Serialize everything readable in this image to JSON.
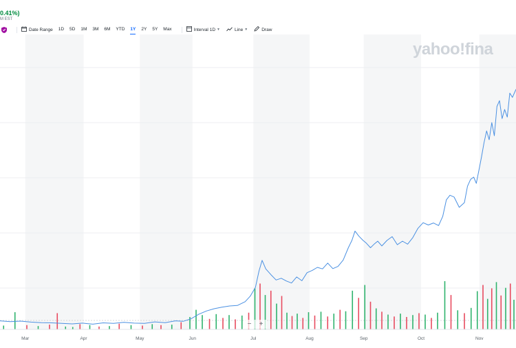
{
  "quote": {
    "change_pct": "0.41%)",
    "time_suffix": "M EST"
  },
  "toolbar": {
    "shield_icon": "shield-icon",
    "date_range": "Date Range",
    "ranges": [
      {
        "label": "1D",
        "active": false
      },
      {
        "label": "5D",
        "active": false
      },
      {
        "label": "1M",
        "active": false
      },
      {
        "label": "3M",
        "active": false
      },
      {
        "label": "6M",
        "active": false
      },
      {
        "label": "YTD",
        "active": false
      },
      {
        "label": "1Y",
        "active": true
      },
      {
        "label": "2Y",
        "active": false
      },
      {
        "label": "5Y",
        "active": false
      },
      {
        "label": "Max",
        "active": false
      }
    ],
    "interval_label": "Interval",
    "interval_value": "1D",
    "chart_type_label": "Line",
    "draw_label": "Draw"
  },
  "watermark": "yahoo!fina",
  "zoom": {
    "minus": "−",
    "plus": "+"
  },
  "chart_data": {
    "type": "line",
    "x_labels": [
      "Mar",
      "Apr",
      "May",
      "Jun",
      "Jul",
      "Aug",
      "Sep",
      "Oct",
      "Nov"
    ],
    "x_domain": [
      0,
      100
    ],
    "x_label_positions": [
      4.9,
      16.2,
      27.1,
      37.3,
      49.1,
      60.0,
      70.5,
      81.6,
      92.9
    ],
    "shaded_bands": [
      [
        4.9,
        16.2
      ],
      [
        27.1,
        37.3
      ],
      [
        49.1,
        60.0
      ],
      [
        70.5,
        81.6
      ],
      [
        92.9,
        100
      ]
    ],
    "y_range": [
      0,
      100
    ],
    "grid": {
      "horizontal": true,
      "vertical": false
    },
    "colors": {
      "line": "#4a90e2",
      "volume_up": "#2fb36d",
      "volume_down": "#e84a5f",
      "band": "#f5f6f7",
      "grid": "#eceef0"
    },
    "series": [
      {
        "x": [
          0,
          2,
          4,
          6,
          8,
          10,
          12,
          14,
          16,
          18,
          20,
          22,
          24,
          26,
          28,
          30,
          32,
          34,
          35.5,
          37,
          38.5,
          40,
          41.5,
          43,
          44.5,
          46,
          47.5,
          48.5,
          49.5,
          50.2,
          50.8,
          51.5,
          52.5,
          53.5,
          54.5,
          55.5,
          56.5,
          57.5,
          58.5,
          59.5,
          60.5,
          61.5,
          62.5,
          63.5,
          64.5,
          65.5,
          66.5,
          67.5,
          68.2,
          68.8,
          69.5,
          70.3,
          71,
          71.8,
          72.5,
          73.2,
          74,
          75,
          76,
          77,
          78,
          79,
          80,
          81,
          82,
          83,
          84,
          85,
          85.8,
          86.5,
          87.2,
          88,
          89,
          90,
          90.6,
          91.2,
          91.8,
          92.3,
          92.8,
          93.3,
          93.8,
          94.3,
          94.8,
          95.3,
          95.8,
          96.3,
          96.8,
          97.3,
          97.8,
          98.3,
          98.8,
          99.3,
          100
        ],
        "y": [
          1.2,
          0.9,
          1.1,
          0.7,
          0.5,
          0.4,
          0.2,
          0.0,
          0.3,
          -0.1,
          0.4,
          0.2,
          0.6,
          0.3,
          0.2,
          0.8,
          0.5,
          1.2,
          1.0,
          2.0,
          3.8,
          5.1,
          6.0,
          6.6,
          7.1,
          7.3,
          8.8,
          11.0,
          14.5,
          21.0,
          25.2,
          21.8,
          19.5,
          17.4,
          18.1,
          17.0,
          16.2,
          18.6,
          17.1,
          20.3,
          21.2,
          22.4,
          21.8,
          24.1,
          21.9,
          22.8,
          25.3,
          30.2,
          33.1,
          36.8,
          34.9,
          33.2,
          32.0,
          30.2,
          31.6,
          32.8,
          30.9,
          33.1,
          34.6,
          31.4,
          32.8,
          31.6,
          34.2,
          37.9,
          40.1,
          39.2,
          40.0,
          39.0,
          42.6,
          49.2,
          51.0,
          50.3,
          46.2,
          48.1,
          54.6,
          57.3,
          58.2,
          55.7,
          60.8,
          66.1,
          71.8,
          76.5,
          73.0,
          79.8,
          74.6,
          86.2,
          88.5,
          81.4,
          85.0,
          82.0,
          91.5,
          89.8,
          93.0
        ]
      },
      {
        "name": "volume",
        "bars": [
          {
            "x": 0.7,
            "v": 8,
            "up": true
          },
          {
            "x": 2.9,
            "v": 36,
            "up": true
          },
          {
            "x": 5.2,
            "v": 9,
            "up": false
          },
          {
            "x": 7.4,
            "v": 7,
            "up": true
          },
          {
            "x": 9.6,
            "v": 10,
            "up": false
          },
          {
            "x": 11.1,
            "v": 34,
            "up": false
          },
          {
            "x": 12.7,
            "v": 6,
            "up": true
          },
          {
            "x": 14.1,
            "v": 5,
            "up": true
          },
          {
            "x": 15.5,
            "v": 11,
            "up": false
          },
          {
            "x": 17.4,
            "v": 9,
            "up": true
          },
          {
            "x": 19.2,
            "v": 6,
            "up": false
          },
          {
            "x": 21.2,
            "v": 7,
            "up": true
          },
          {
            "x": 23.1,
            "v": 12,
            "up": false
          },
          {
            "x": 25.4,
            "v": 9,
            "up": true
          },
          {
            "x": 27.6,
            "v": 8,
            "up": false
          },
          {
            "x": 29.5,
            "v": 11,
            "up": true
          },
          {
            "x": 31.2,
            "v": 9,
            "up": false
          },
          {
            "x": 33.3,
            "v": 10,
            "up": true
          },
          {
            "x": 35.1,
            "v": 15,
            "up": false
          },
          {
            "x": 36.8,
            "v": 26,
            "up": true
          },
          {
            "x": 38.0,
            "v": 41,
            "up": true
          },
          {
            "x": 39.2,
            "v": 30,
            "up": true
          },
          {
            "x": 40.6,
            "v": 22,
            "up": false
          },
          {
            "x": 41.9,
            "v": 32,
            "up": true
          },
          {
            "x": 43.2,
            "v": 24,
            "up": false
          },
          {
            "x": 44.4,
            "v": 30,
            "up": true
          },
          {
            "x": 45.6,
            "v": 21,
            "up": false
          },
          {
            "x": 46.9,
            "v": 29,
            "up": true
          },
          {
            "x": 48.2,
            "v": 35,
            "up": false
          },
          {
            "x": 49.4,
            "v": 86,
            "up": true
          },
          {
            "x": 50.4,
            "v": 96,
            "up": false
          },
          {
            "x": 51.4,
            "v": 72,
            "up": true
          },
          {
            "x": 52.5,
            "v": 81,
            "up": false
          },
          {
            "x": 53.6,
            "v": 54,
            "up": true
          },
          {
            "x": 54.6,
            "v": 70,
            "up": false
          },
          {
            "x": 55.6,
            "v": 35,
            "up": true
          },
          {
            "x": 56.6,
            "v": 28,
            "up": false
          },
          {
            "x": 57.6,
            "v": 33,
            "up": true
          },
          {
            "x": 58.7,
            "v": 24,
            "up": false
          },
          {
            "x": 59.8,
            "v": 36,
            "up": true
          },
          {
            "x": 61.0,
            "v": 29,
            "up": false
          },
          {
            "x": 62.2,
            "v": 37,
            "up": true
          },
          {
            "x": 63.5,
            "v": 27,
            "up": false
          },
          {
            "x": 64.7,
            "v": 33,
            "up": true
          },
          {
            "x": 65.9,
            "v": 41,
            "up": false
          },
          {
            "x": 67.0,
            "v": 38,
            "up": true
          },
          {
            "x": 68.3,
            "v": 81,
            "up": true
          },
          {
            "x": 69.5,
            "v": 66,
            "up": false
          },
          {
            "x": 70.7,
            "v": 93,
            "up": true
          },
          {
            "x": 71.8,
            "v": 58,
            "up": false
          },
          {
            "x": 72.9,
            "v": 44,
            "up": true
          },
          {
            "x": 74.0,
            "v": 37,
            "up": false
          },
          {
            "x": 75.2,
            "v": 31,
            "up": true
          },
          {
            "x": 76.4,
            "v": 27,
            "up": false
          },
          {
            "x": 77.6,
            "v": 33,
            "up": true
          },
          {
            "x": 78.8,
            "v": 26,
            "up": false
          },
          {
            "x": 80.0,
            "v": 30,
            "up": true
          },
          {
            "x": 81.2,
            "v": 34,
            "up": false
          },
          {
            "x": 82.4,
            "v": 31,
            "up": true
          },
          {
            "x": 83.6,
            "v": 24,
            "up": false
          },
          {
            "x": 84.8,
            "v": 35,
            "up": true
          },
          {
            "x": 86.2,
            "v": 101,
            "up": true
          },
          {
            "x": 87.4,
            "v": 72,
            "up": false
          },
          {
            "x": 88.7,
            "v": 40,
            "up": true
          },
          {
            "x": 90.0,
            "v": 34,
            "up": false
          },
          {
            "x": 91.3,
            "v": 45,
            "up": true
          },
          {
            "x": 92.5,
            "v": 80,
            "up": true
          },
          {
            "x": 93.6,
            "v": 93,
            "up": false
          },
          {
            "x": 94.5,
            "v": 64,
            "up": true
          },
          {
            "x": 95.3,
            "v": 86,
            "up": false
          },
          {
            "x": 96.2,
            "v": 99,
            "up": true
          },
          {
            "x": 97.1,
            "v": 71,
            "up": false
          },
          {
            "x": 98.0,
            "v": 87,
            "up": true
          },
          {
            "x": 98.9,
            "v": 96,
            "up": false
          },
          {
            "x": 99.6,
            "v": 62,
            "up": true
          }
        ]
      }
    ]
  }
}
